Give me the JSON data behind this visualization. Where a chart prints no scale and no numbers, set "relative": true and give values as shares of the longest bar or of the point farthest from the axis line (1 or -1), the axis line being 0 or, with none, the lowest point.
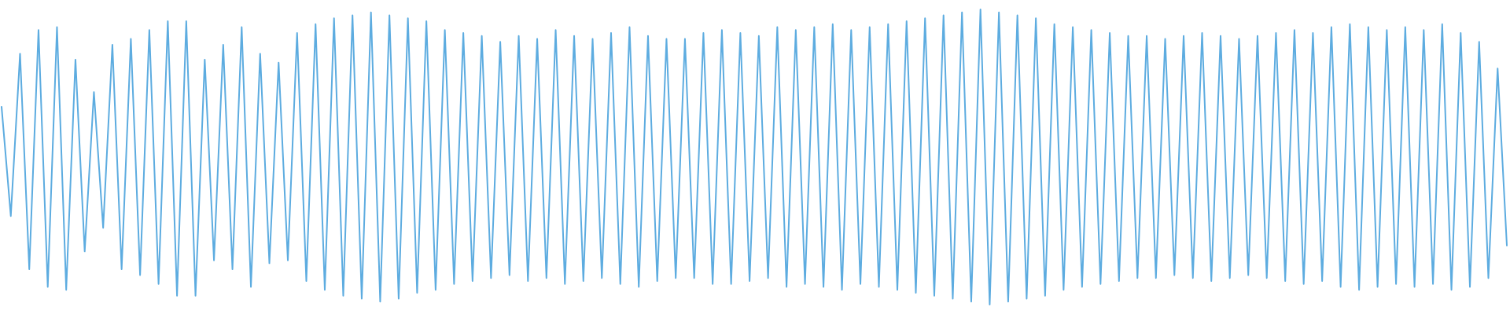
{
  "chart_data": {
    "type": "line",
    "relative": true,
    "categories": [
      null,
      null,
      null,
      null,
      null,
      null,
      null,
      null,
      null,
      null,
      null,
      null,
      null,
      null,
      null,
      null,
      null,
      null,
      null,
      null,
      null,
      null,
      null,
      null,
      null,
      null,
      null,
      null,
      null,
      null,
      null,
      null,
      null,
      null,
      null,
      null,
      null,
      null,
      null,
      null,
      null,
      null,
      null,
      null,
      null,
      null,
      null,
      null,
      null,
      null,
      null,
      null,
      null,
      null,
      null,
      null,
      null,
      null,
      null,
      null,
      null,
      null,
      null,
      null,
      null,
      null,
      null,
      null,
      null,
      null,
      null,
      null,
      null,
      null,
      null,
      null,
      null,
      null,
      null,
      null,
      null,
      null,
      null,
      null,
      null,
      null,
      null,
      null,
      null,
      null,
      null,
      null,
      null,
      null,
      null,
      null,
      null,
      null,
      null,
      null,
      null,
      null,
      null,
      null,
      null,
      null,
      null,
      null,
      null,
      null,
      null,
      null,
      null,
      null,
      null,
      null,
      null,
      null,
      null,
      null,
      null,
      null,
      null,
      null,
      null,
      null,
      null,
      null,
      null,
      null,
      null,
      null,
      null,
      null,
      null,
      null,
      null,
      null,
      null,
      null,
      null,
      null,
      null,
      null,
      null,
      null,
      null,
      null,
      null,
      null,
      null,
      null,
      null,
      null,
      null,
      null,
      null,
      null,
      null,
      null,
      null,
      null,
      null,
      null
    ],
    "series": [
      {
        "color": "#5dace0",
        "values": [
          0.67,
          0.3,
          0.85,
          0.12,
          0.93,
          0.06,
          0.94,
          0.05,
          0.83,
          0.18,
          0.72,
          0.26,
          0.88,
          0.12,
          0.9,
          0.1,
          0.93,
          0.07,
          0.96,
          0.03,
          0.96,
          0.03,
          0.83,
          0.15,
          0.88,
          0.12,
          0.94,
          0.06,
          0.85,
          0.14,
          0.82,
          0.15,
          0.92,
          0.08,
          0.95,
          0.05,
          0.97,
          0.03,
          0.98,
          0.02,
          0.99,
          0.01,
          0.98,
          0.02,
          0.97,
          0.04,
          0.96,
          0.05,
          0.93,
          0.07,
          0.92,
          0.08,
          0.91,
          0.09,
          0.89,
          0.1,
          0.91,
          0.08,
          0.9,
          0.09,
          0.93,
          0.07,
          0.91,
          0.08,
          0.9,
          0.09,
          0.92,
          0.07,
          0.94,
          0.06,
          0.91,
          0.08,
          0.9,
          0.09,
          0.9,
          0.09,
          0.92,
          0.07,
          0.93,
          0.07,
          0.92,
          0.08,
          0.91,
          0.09,
          0.94,
          0.06,
          0.93,
          0.07,
          0.94,
          0.06,
          0.95,
          0.05,
          0.93,
          0.07,
          0.94,
          0.06,
          0.95,
          0.05,
          0.96,
          0.04,
          0.97,
          0.03,
          0.98,
          0.02,
          0.99,
          0.01,
          1.0,
          0.0,
          0.99,
          0.01,
          0.98,
          0.02,
          0.97,
          0.03,
          0.95,
          0.05,
          0.94,
          0.06,
          0.93,
          0.07,
          0.92,
          0.08,
          0.91,
          0.09,
          0.91,
          0.09,
          0.9,
          0.1,
          0.91,
          0.09,
          0.92,
          0.08,
          0.91,
          0.09,
          0.9,
          0.1,
          0.91,
          0.09,
          0.92,
          0.08,
          0.93,
          0.07,
          0.92,
          0.08,
          0.94,
          0.06,
          0.95,
          0.05,
          0.94,
          0.06,
          0.93,
          0.07,
          0.94,
          0.06,
          0.93,
          0.07,
          0.95,
          0.05,
          0.92,
          0.06,
          0.89,
          0.09,
          0.8,
          0.2
        ]
      }
    ]
  }
}
